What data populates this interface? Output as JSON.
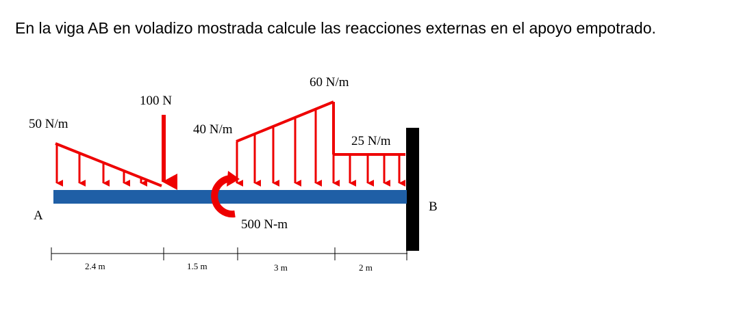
{
  "problem": {
    "text": "En la viga AB en voladizo mostrada calcule las reacciones externas en el apoyo empotrado."
  },
  "points": {
    "a": "A",
    "b": "B"
  },
  "loads": {
    "dist_left_start": "50 N/m",
    "point_force": "100 N",
    "dist_mid_start": "40 N/m",
    "dist_mid_end": "60 N/m",
    "dist_right": "25 N/m",
    "moment": "500 N-m"
  },
  "dimensions": [
    "2.4 m",
    "1.5 m",
    "3 m",
    "2 m"
  ],
  "colors": {
    "beam": "#1f5fa6",
    "load": "#ee0000",
    "support": "#000000"
  }
}
